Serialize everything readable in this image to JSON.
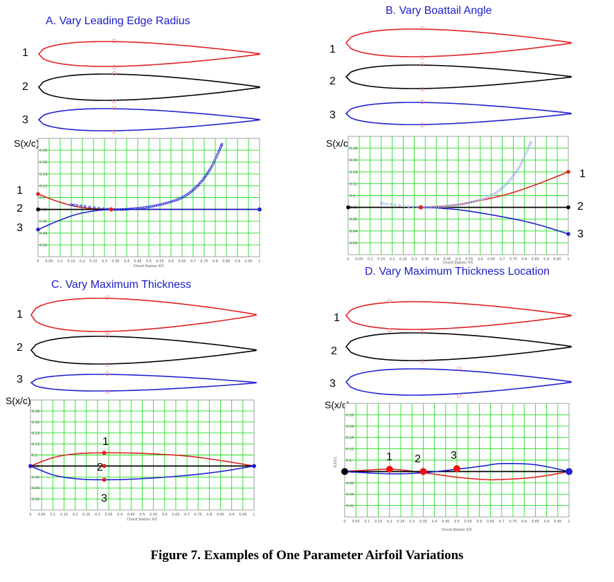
{
  "caption": "Figure 7. Examples of One Parameter Airfoil Variations",
  "colors": {
    "red": "#e02020",
    "black": "#000000",
    "blue": "#2020d0",
    "grid": "#22dd22",
    "light_blue": "#a9b4ee",
    "title": "#1c1cc8"
  },
  "panels": [
    {
      "id": "A",
      "title": "A. Vary Leading Edge Radius",
      "variant_labels": [
        "1",
        "2",
        "3"
      ],
      "y_axis_label": "S(x/c)",
      "x_axis_label": "Chord Station X/C",
      "y_tick_labels": [
        "0.02",
        "0.04",
        "0.06",
        "0.08",
        "0.1",
        "0.12",
        "0.14",
        "0.16",
        "0.18"
      ],
      "x_tick_labels": [
        "0",
        "0.05",
        "0.1",
        "0.15",
        "0.2",
        "0.25",
        "0.3",
        "0.35",
        "0.4",
        "0.45",
        "0.5",
        "0.55",
        "0.6",
        "0.65",
        "0.7",
        "0.75",
        "0.8",
        "0.85",
        "0.9",
        "0.95",
        "1"
      ],
      "curve_point_labels": [
        "1",
        "2",
        "3"
      ]
    },
    {
      "id": "B",
      "title": "B. Vary Boattail Angle",
      "variant_labels": [
        "1",
        "2",
        "3"
      ],
      "y_axis_label": "S(x/c)",
      "x_axis_label": "Chord Station X/C",
      "y_tick_labels": [
        "0.02",
        "0.04",
        "0.06",
        "0.08",
        "0.1",
        "0.12",
        "0.14",
        "0.16",
        "0.18"
      ],
      "x_tick_labels": [
        "0",
        "0.05",
        "0.1",
        "0.15",
        "0.2",
        "0.25",
        "0.3",
        "0.35",
        "0.4",
        "0.45",
        "0.5",
        "0.55",
        "0.6",
        "0.65",
        "0.7",
        "0.75",
        "0.8",
        "0.85",
        "0.9",
        "0.95",
        "1"
      ],
      "curve_point_labels": [
        "1",
        "2",
        "3"
      ]
    },
    {
      "id": "C",
      "title": "C. Vary Maximum Thickness",
      "variant_labels": [
        "1",
        "2",
        "3"
      ],
      "y_axis_label": "S(x/c)",
      "x_axis_label": "Chord Station X/C",
      "y_tick_labels": [
        "0.02",
        "0.04",
        "0.06",
        "0.08",
        "0.1",
        "0.12",
        "0.14",
        "0.16",
        "0.18"
      ],
      "x_tick_labels": [
        "0",
        "0.05",
        "0.1",
        "0.15",
        "0.2",
        "0.25",
        "0.3",
        "0.35",
        "0.4",
        "0.45",
        "0.5",
        "0.55",
        "0.6",
        "0.65",
        "0.7",
        "0.75",
        "0.8",
        "0.85",
        "0.9",
        "0.95",
        "1"
      ],
      "curve_point_labels": [
        "1",
        "2",
        "3"
      ]
    },
    {
      "id": "D",
      "title": "D. Vary Maximum Thickness Location",
      "variant_labels": [
        "1",
        "2",
        "3"
      ],
      "y_axis_label": "S(x/c)",
      "x_axis_label": "Chord Station X/C",
      "y_axis_side_label": "S(X/C)",
      "y_tick_labels": [
        "0.02",
        "0.04",
        "0.06",
        "0.08",
        "0.1",
        "0.12",
        "0.14",
        "0.16",
        "0.18"
      ],
      "x_tick_labels": [
        "0",
        "0.05",
        "0.1",
        "0.15",
        "0.2",
        "0.25",
        "0.3",
        "0.35",
        "0.4",
        "0.45",
        "0.5",
        "0.55",
        "0.6",
        "0.65",
        "0.7",
        "0.75",
        "0.8",
        "0.85",
        "0.9",
        "0.95",
        "1"
      ],
      "curve_point_labels": [
        "1",
        "2",
        "3"
      ]
    }
  ],
  "chart_data": [
    {
      "panel": "A",
      "type": "line",
      "xlabel": "Chord Station X/C",
      "ylabel": "S(x/c)",
      "xlim": [
        0,
        1
      ],
      "ylim": [
        0,
        0.2
      ],
      "grid": true,
      "series": [
        {
          "name": "1",
          "color": "#e02020",
          "x": [
            0,
            0.1,
            0.2,
            0.33
          ],
          "y": [
            0.106,
            0.092,
            0.083,
            0.08
          ]
        },
        {
          "name": "2",
          "color": "#000000",
          "x": [
            0,
            1
          ],
          "y": [
            0.08,
            0.08
          ]
        },
        {
          "name": "3",
          "color": "#2020d0",
          "x": [
            0,
            0.1,
            0.2,
            0.33,
            0.5,
            0.7,
            0.85,
            1
          ],
          "y": [
            0.046,
            0.062,
            0.074,
            0.08,
            0.08,
            0.08,
            0.08,
            0.08
          ]
        },
        {
          "name": "",
          "color": "#2020d0",
          "x": [
            0.15,
            0.33,
            0.45,
            0.55,
            0.65,
            0.72,
            0.78,
            0.83
          ],
          "y": [
            0.088,
            0.08,
            0.082,
            0.088,
            0.1,
            0.12,
            0.15,
            0.19
          ]
        }
      ]
    },
    {
      "panel": "B",
      "type": "line",
      "xlabel": "Chord Station X/C",
      "ylabel": "S(x/c)",
      "xlim": [
        0,
        1
      ],
      "ylim": [
        0,
        0.2
      ],
      "grid": true,
      "series": [
        {
          "name": "1",
          "color": "#e02020",
          "x": [
            0.33,
            0.5,
            0.7,
            0.85,
            1
          ],
          "y": [
            0.08,
            0.085,
            0.1,
            0.118,
            0.14
          ]
        },
        {
          "name": "2",
          "color": "#000000",
          "x": [
            0,
            1
          ],
          "y": [
            0.08,
            0.08
          ]
        },
        {
          "name": "3",
          "color": "#2020d0",
          "x": [
            0.33,
            0.5,
            0.7,
            0.85,
            1
          ],
          "y": [
            0.08,
            0.076,
            0.064,
            0.052,
            0.035
          ]
        },
        {
          "name": "",
          "color": "#a9b4ee",
          "x": [
            0.15,
            0.33,
            0.45,
            0.55,
            0.65,
            0.72,
            0.78,
            0.83
          ],
          "y": [
            0.087,
            0.08,
            0.082,
            0.088,
            0.1,
            0.12,
            0.15,
            0.19
          ]
        }
      ]
    },
    {
      "panel": "C",
      "type": "line",
      "xlabel": "Chord Station X/C",
      "ylabel": "S(x/c)",
      "xlim": [
        0,
        1
      ],
      "ylim": [
        0,
        0.2
      ],
      "grid": true,
      "series": [
        {
          "name": "1",
          "color": "#e02020",
          "x": [
            0,
            0.1,
            0.2,
            0.33,
            0.5,
            0.7,
            0.85,
            1
          ],
          "y": [
            0.08,
            0.095,
            0.102,
            0.104,
            0.103,
            0.098,
            0.09,
            0.08
          ]
        },
        {
          "name": "2",
          "color": "#000000",
          "x": [
            0,
            1
          ],
          "y": [
            0.08,
            0.08
          ]
        },
        {
          "name": "3",
          "color": "#2020d0",
          "x": [
            0,
            0.1,
            0.2,
            0.33,
            0.5,
            0.7,
            0.85,
            1
          ],
          "y": [
            0.08,
            0.064,
            0.057,
            0.055,
            0.057,
            0.063,
            0.07,
            0.08
          ]
        }
      ]
    },
    {
      "panel": "D",
      "type": "line",
      "xlabel": "Chord Station X/C",
      "ylabel": "S(x/c)",
      "xlim": [
        0,
        1
      ],
      "ylim": [
        0,
        0.2
      ],
      "grid": true,
      "series": [
        {
          "name": "1",
          "color": "#e02020",
          "x": [
            0,
            0.2,
            0.35,
            0.5,
            0.62,
            0.7,
            0.85,
            1
          ],
          "y": [
            0.08,
            0.084,
            0.078,
            0.07,
            0.066,
            0.066,
            0.07,
            0.08
          ]
        },
        {
          "name": "2",
          "color": "#000000",
          "x": [
            0,
            1
          ],
          "y": [
            0.08,
            0.08
          ]
        },
        {
          "name": "3",
          "color": "#2020d0",
          "x": [
            0,
            0.2,
            0.35,
            0.5,
            0.62,
            0.7,
            0.85,
            1
          ],
          "y": [
            0.08,
            0.076,
            0.078,
            0.084,
            0.09,
            0.094,
            0.092,
            0.08
          ]
        }
      ],
      "points": [
        {
          "label": "1",
          "x": 0.2,
          "y": 0.084
        },
        {
          "label": "2",
          "x": 0.35,
          "y": 0.08
        },
        {
          "label": "3",
          "x": 0.5,
          "y": 0.085
        }
      ]
    }
  ]
}
